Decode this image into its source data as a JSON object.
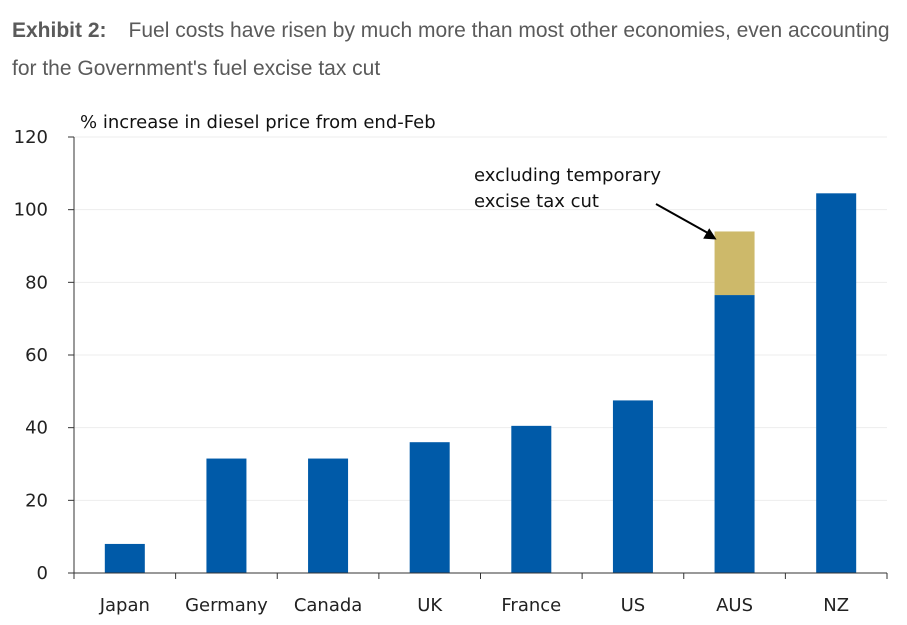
{
  "header": {
    "exhibit_label": "Exhibit 2:",
    "title": "Fuel costs have risen by much more than most other economies, even accounting for the Government's fuel excise tax cut"
  },
  "chart_data": {
    "type": "bar",
    "stacked": true,
    "ylabel": "% increase in diesel price from end-Feb",
    "xlabel": "",
    "ylim": [
      0,
      120
    ],
    "yticks": [
      0,
      20,
      40,
      60,
      80,
      100,
      120
    ],
    "categories": [
      "Japan",
      "Germany",
      "Canada",
      "UK",
      "France",
      "US",
      "AUS",
      "NZ"
    ],
    "series": [
      {
        "name": "Diesel price increase",
        "color": "#005aa8",
        "values": [
          8,
          31.5,
          31.5,
          36,
          40.5,
          47.5,
          76.5,
          104.5
        ]
      },
      {
        "name": "excluding temporary excise tax cut",
        "color": "#cdb96a",
        "values": [
          0,
          0,
          0,
          0,
          0,
          0,
          17.5,
          0
        ]
      }
    ],
    "annotation": {
      "lines": [
        "excluding temporary",
        "excise tax cut"
      ],
      "target_category": "AUS"
    },
    "grid": true
  }
}
